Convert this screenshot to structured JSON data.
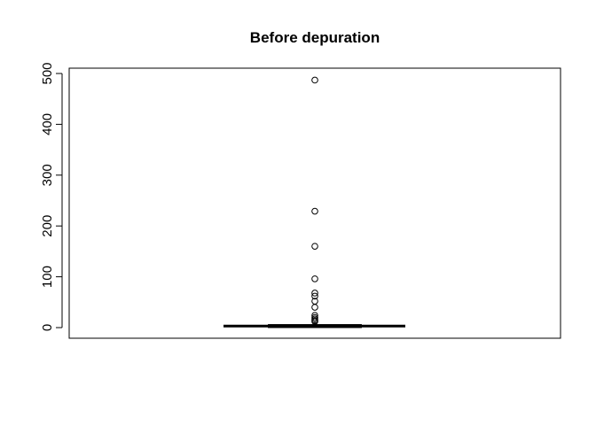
{
  "chart_data": {
    "type": "boxplot",
    "title": "Before depuration",
    "xlabel": "",
    "ylabel": "",
    "ylim": [
      -20,
      515
    ],
    "yticks": [
      0,
      100,
      200,
      300,
      400,
      500
    ],
    "box": {
      "min": 0,
      "q1": 1,
      "median": 3,
      "q3": 5,
      "max": 10
    },
    "outliers": [
      487,
      229,
      160,
      96,
      68,
      62,
      52,
      40,
      24,
      20,
      17,
      14,
      12
    ],
    "grid": false
  }
}
